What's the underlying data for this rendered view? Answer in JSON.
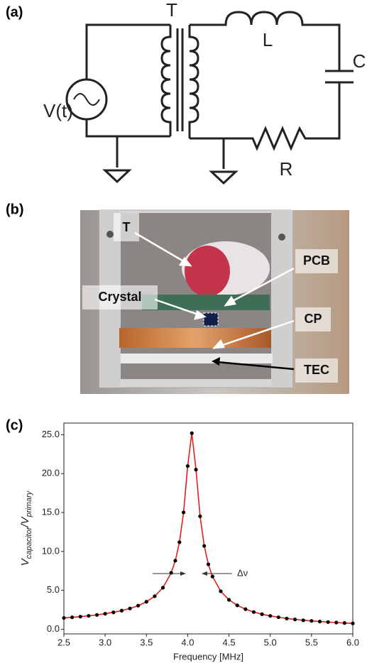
{
  "panel_a": {
    "label": "(a)",
    "transformer": "T",
    "inductor": "L",
    "capacitor": "C",
    "source": "V(t)",
    "resistor": "R"
  },
  "panel_b": {
    "label": "(b)",
    "callouts": [
      "T",
      "PCB",
      "Crystal",
      "CP",
      "TEC"
    ]
  },
  "chart_data": {
    "type": "scatter-line",
    "panel_label": "(c)",
    "xlabel": "Frequency [MHz]",
    "ylabel": [
      "V",
      "capacitor",
      "/V",
      "primary"
    ],
    "annotation": "Δν",
    "x": [
      2.5,
      2.6,
      2.7,
      2.8,
      2.9,
      3.0,
      3.1,
      3.2,
      3.3,
      3.4,
      3.5,
      3.6,
      3.7,
      3.8,
      3.85,
      3.9,
      3.95,
      4.0,
      4.05,
      4.1,
      4.15,
      4.2,
      4.25,
      4.3,
      4.4,
      4.5,
      4.6,
      4.7,
      4.8,
      4.9,
      5.0,
      5.1,
      5.2,
      5.3,
      5.4,
      5.5,
      5.6,
      5.7,
      5.8,
      5.9,
      6.0
    ],
    "series": [
      {
        "color": "#000000",
        "values": [
          1.45,
          1.53,
          1.62,
          1.72,
          1.84,
          1.99,
          2.17,
          2.39,
          2.67,
          3.03,
          3.53,
          4.24,
          5.34,
          7.25,
          8.81,
          11.19,
          15.02,
          20.98,
          25.2,
          20.51,
          14.52,
          10.71,
          8.34,
          6.78,
          4.88,
          3.78,
          3.07,
          2.58,
          2.21,
          1.93,
          1.71,
          1.54,
          1.38,
          1.26,
          1.15,
          1.07,
          0.99,
          0.92,
          0.86,
          0.8,
          0.75
        ]
      },
      {
        "color": "#e0201b",
        "values": [
          1.45,
          1.53,
          1.62,
          1.72,
          1.84,
          1.99,
          2.17,
          2.39,
          2.67,
          3.03,
          3.53,
          4.24,
          5.34,
          7.25,
          8.81,
          11.19,
          15.02,
          20.98,
          25.2,
          20.51,
          14.52,
          10.71,
          8.34,
          6.78,
          4.88,
          3.78,
          3.07,
          2.58,
          2.21,
          1.93,
          1.71,
          1.54,
          1.38,
          1.26,
          1.15,
          1.07,
          0.99,
          0.92,
          0.86,
          0.8,
          0.75
        ]
      }
    ],
    "xlim": [
      2.5,
      6.0
    ],
    "ylim": [
      -0.6,
      26.5
    ],
    "xticks": [
      2.5,
      {
        "value": 3,
        "label": "3.0"
      },
      3.5,
      {
        "value": 4,
        "label": "4.0"
      },
      4.5,
      {
        "value": 5,
        "label": "5.0"
      },
      5.5,
      {
        "value": 6,
        "label": "6.0"
      }
    ],
    "yticks": [
      {
        "value": 0,
        "label": "0.0"
      },
      {
        "value": 5,
        "label": "5.0"
      },
      {
        "value": 10,
        "label": "10.0"
      },
      {
        "value": 15,
        "label": "15.0"
      },
      {
        "value": 20,
        "label": "20.0"
      },
      {
        "value": 25,
        "label": "25.0"
      }
    ]
  }
}
